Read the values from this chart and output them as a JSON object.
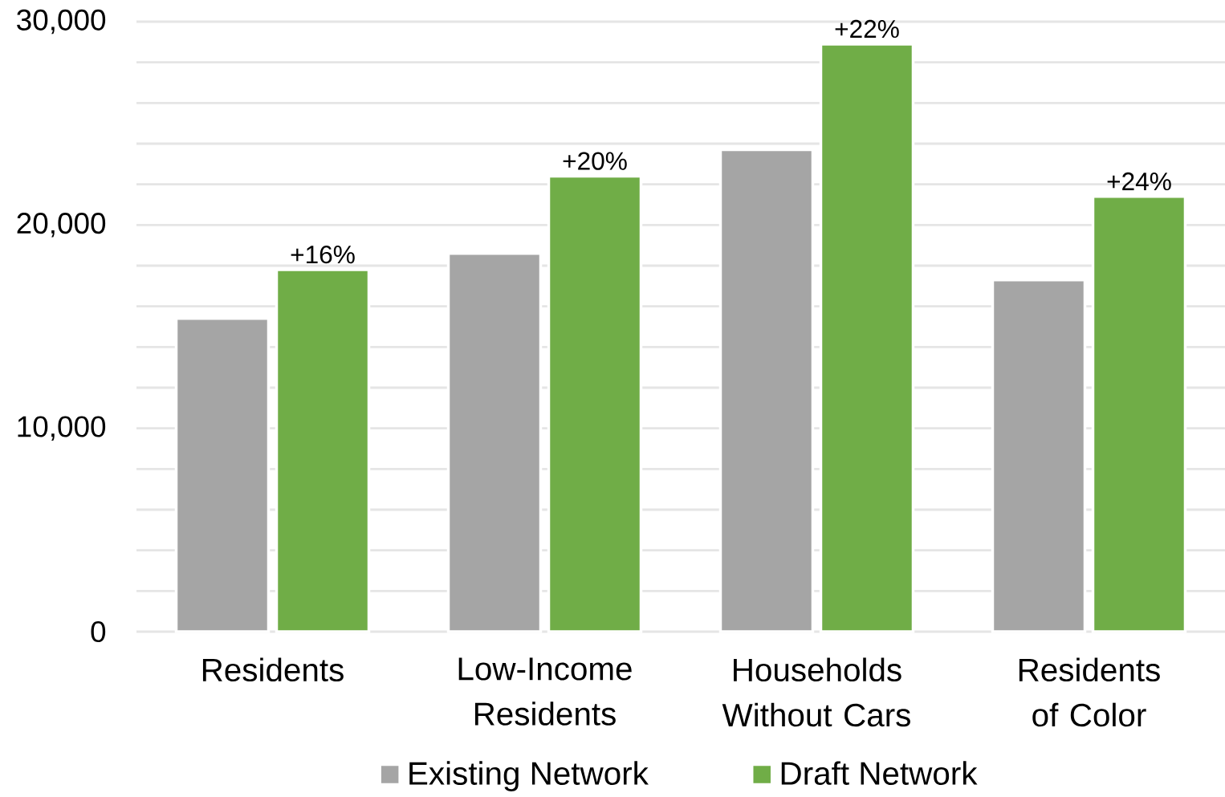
{
  "chart_data": {
    "type": "bar",
    "categories": [
      "Residents",
      "Low-Income Residents",
      "Households Without Cars",
      "Residents of Color"
    ],
    "series": [
      {
        "name": "Existing Network",
        "color": "#a5a5a5",
        "values": [
          15400,
          18600,
          23700,
          17300
        ]
      },
      {
        "name": "Draft Network",
        "color": "#70ad47",
        "values": [
          17800,
          22400,
          28900,
          21400
        ]
      }
    ],
    "annotations": [
      {
        "text": "+16%",
        "x": "Residents",
        "y": 17800
      },
      {
        "text": "+20%",
        "x": "Low-Income Residents",
        "y": 22400
      },
      {
        "text": "+22%",
        "x": "Households Without Cars",
        "y": 28900
      },
      {
        "text": "+24%",
        "x": "Residents of Color",
        "y": 21400
      }
    ],
    "ylim": [
      0,
      30000
    ],
    "yticks": [
      0,
      {
        "value": 2000,
        "label": null
      },
      {
        "value": 4000,
        "label": null
      },
      {
        "value": 6000,
        "label": null
      },
      {
        "value": 8000,
        "label": null
      },
      {
        "value": 10000,
        "label": "10,000"
      },
      {
        "value": 12000,
        "label": null
      },
      {
        "value": 14000,
        "label": null
      },
      {
        "value": 16000,
        "label": null
      },
      {
        "value": 18000,
        "label": null
      },
      {
        "value": 20000,
        "label": "20,000"
      },
      {
        "value": 22000,
        "label": null
      },
      {
        "value": 24000,
        "label": null
      },
      {
        "value": 26000,
        "label": null
      },
      {
        "value": 28000,
        "label": null
      },
      {
        "value": 30000,
        "label": "30,000"
      }
    ],
    "grid": "y",
    "legend": "bottom"
  }
}
